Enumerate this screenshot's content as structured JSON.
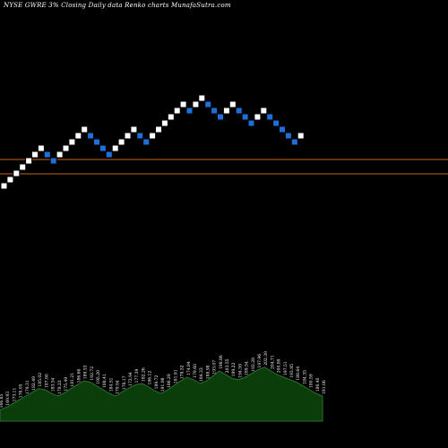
{
  "header": {
    "title": "NYSE GWRE 3% Closing Daily data  Renko  charts MunafaSutra.com"
  },
  "colors": {
    "background": "#000000",
    "up_brick": "#ffffff",
    "down_brick": "#1e6fd9",
    "brick_border": "#000000",
    "level_line": "#c8641e",
    "volume_fill": "#0a3d0a",
    "volume_line": "#2f6f2f",
    "label": "#ffffff"
  },
  "chart_data": {
    "type": "renko",
    "source": "daily close",
    "bricks": [
      "up",
      "up",
      "up",
      "up",
      "up",
      "up",
      "up",
      "down",
      "down",
      "up",
      "up",
      "up",
      "up",
      "up",
      "down",
      "down",
      "down",
      "down",
      "up",
      "up",
      "up",
      "up",
      "down",
      "down",
      "up",
      "up",
      "up",
      "up",
      "up",
      "up",
      "down",
      "up",
      "up",
      "down",
      "down",
      "down",
      "up",
      "up",
      "down",
      "down",
      "down",
      "up",
      "up",
      "down",
      "down",
      "down",
      "down",
      "down",
      "up"
    ],
    "reference_lines": [
      {
        "name": "level-1",
        "y": 194
      },
      {
        "name": "level-2",
        "y": 178
      }
    ],
    "volume": {
      "values": [
        0.18,
        0.22,
        0.28,
        0.34,
        0.4,
        0.46,
        0.52,
        0.5,
        0.44,
        0.4,
        0.45,
        0.52,
        0.58,
        0.64,
        0.62,
        0.56,
        0.5,
        0.44,
        0.4,
        0.47,
        0.53,
        0.58,
        0.6,
        0.55,
        0.48,
        0.44,
        0.5,
        0.57,
        0.64,
        0.7,
        0.66,
        0.6,
        0.64,
        0.72,
        0.8,
        0.74,
        0.68,
        0.66,
        0.7,
        0.76,
        0.82,
        0.86,
        0.8,
        0.74,
        0.7,
        0.66,
        0.62,
        0.56,
        0.5,
        0.44,
        0.4
      ]
    },
    "price_labels": [
      "166.85",
      "169.93",
      "173.11",
      "176.05",
      "179.31",
      "182.49",
      "185.02",
      "187.90",
      "183.54",
      "178.22",
      "175.49",
      "181.21",
      "186.66",
      "189.53",
      "192.72",
      "195.20",
      "188.41",
      "184.51",
      "179.94",
      "176.17",
      "172.94",
      "177.39",
      "182.26",
      "186.12",
      "189.72",
      "191.98",
      "186.29",
      "181.91",
      "178.52",
      "174.84",
      "179.60",
      "184.33",
      "188.98",
      "193.07",
      "198.86",
      "203.55",
      "199.22",
      "194.59",
      "189.54",
      "193.28",
      "197.96",
      "202.39",
      "204.71",
      "200.89",
      "197.51",
      "193.85",
      "188.64",
      "184.35",
      "180.59",
      "186.40",
      "191.06"
    ]
  }
}
